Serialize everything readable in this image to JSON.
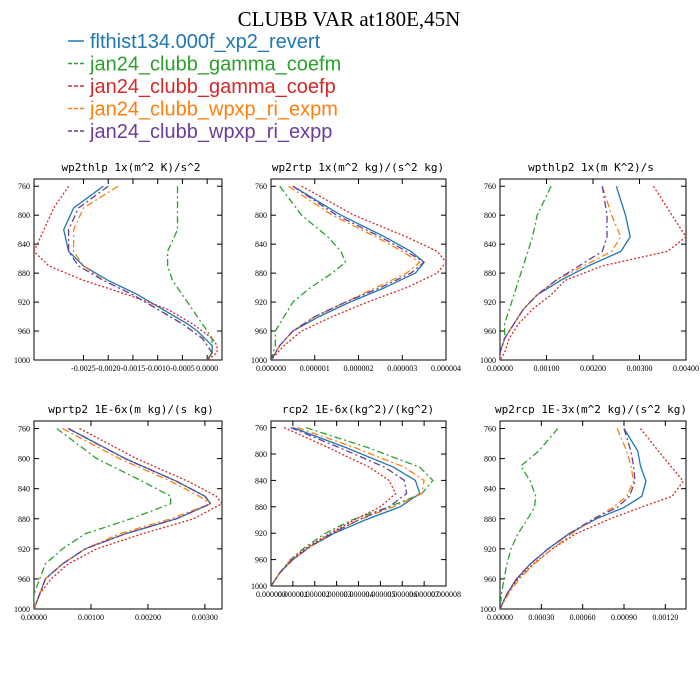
{
  "title": "CLUBB VAR at180E,45N",
  "colors": {
    "flthist134.000f_xp2_revert": "#1f77b4",
    "jan24_clubb_gamma_coefm": "#2ca02c",
    "jan24_clubb_gamma_coefp": "#d62728",
    "jan24_clubb_wpxp_ri_expm": "#ff7f0e",
    "jan24_clubb_wpxp_ri_expp": "#6a3d9a"
  },
  "legend": [
    {
      "name": "flthist134.000f_xp2_revert",
      "color": "#1f77b4",
      "dash": "solid"
    },
    {
      "name": "jan24_clubb_gamma_coefm",
      "color": "#2ca02c",
      "dash": "dashdot"
    },
    {
      "name": "jan24_clubb_gamma_coefp",
      "color": "#d62728",
      "dash": "dot"
    },
    {
      "name": "jan24_clubb_wpxp_ri_expm",
      "color": "#ff7f0e",
      "dash": "dashdot"
    },
    {
      "name": "jan24_clubb_wpxp_ri_expp",
      "color": "#6a3d9a",
      "dash": "dashdot"
    }
  ],
  "chart_data": [
    {
      "type": "line",
      "title": "wp2thlp  1x(m^2 K)/s^2",
      "xlim": [
        -0.0035,
        0.0003
      ],
      "ylim": [
        1000,
        750
      ],
      "xticks": [
        -0.0025,
        -0.002,
        -0.0015,
        -0.001,
        -0.0005,
        0.0
      ],
      "xtick_labels": [
        "-0.0025",
        "-0.0020",
        "-0.0015",
        "-0.0010",
        "-0.0005",
        "0.0000"
      ],
      "yticks": [
        760,
        800,
        840,
        880,
        920,
        960,
        1000
      ],
      "y": [
        760,
        790,
        820,
        850,
        870,
        890,
        910,
        930,
        950,
        960,
        970,
        980,
        990,
        1000
      ],
      "series": [
        {
          "name": "flthist134.000f_xp2_revert",
          "x": [
            -0.0021,
            -0.0027,
            -0.0029,
            -0.0028,
            -0.0025,
            -0.002,
            -0.0014,
            -0.0009,
            -0.0004,
            -0.0002,
            -5e-05,
            0.0001,
            0.0001,
            0.0
          ]
        },
        {
          "name": "jan24_clubb_gamma_coefm",
          "x": [
            -0.0006,
            -0.0006,
            -0.0006,
            -0.0008,
            -0.0008,
            -0.0007,
            -0.0005,
            -0.0003,
            -0.0001,
            0.0,
            0.0001,
            0.0001,
            0.0001,
            0.0
          ]
        },
        {
          "name": "jan24_clubb_gamma_coefp",
          "x": [
            -0.0028,
            -0.0031,
            -0.0033,
            -0.0035,
            -0.0032,
            -0.0025,
            -0.0016,
            -0.0008,
            -0.0003,
            -0.0001,
            0.0001,
            0.0002,
            0.0002,
            0.0
          ]
        },
        {
          "name": "jan24_clubb_wpxp_ri_expm",
          "x": [
            -0.0018,
            -0.0025,
            -0.0027,
            -0.0027,
            -0.0025,
            -0.0021,
            -0.0015,
            -0.001,
            -0.0005,
            -0.0003,
            -0.0001,
            0.0,
            0.0001,
            0.0
          ]
        },
        {
          "name": "jan24_clubb_wpxp_ri_expp",
          "x": [
            -0.002,
            -0.0026,
            -0.0028,
            -0.0028,
            -0.0026,
            -0.0021,
            -0.0015,
            -0.001,
            -0.0005,
            -0.0003,
            -0.0001,
            0.0,
            0.0001,
            0.0
          ]
        }
      ]
    },
    {
      "type": "line",
      "title": "wp2rtp  1x(m^2 kg)/(s^2 kg)",
      "xlim": [
        0.0,
        4e-06
      ],
      "ylim": [
        1000,
        750
      ],
      "xticks": [
        0.0,
        1e-06,
        2e-06,
        3e-06,
        4e-06
      ],
      "xtick_labels": [
        "0.000000",
        "0.000001",
        "0.000002",
        "0.000003",
        "0.000004"
      ],
      "yticks": [
        760,
        800,
        840,
        880,
        920,
        960,
        1000
      ],
      "y": [
        760,
        800,
        830,
        850,
        865,
        880,
        900,
        920,
        940,
        960,
        980,
        1000
      ],
      "series": [
        {
          "name": "flthist134.000f_xp2_revert",
          "x": [
            5e-07,
            1.6e-06,
            2.6e-06,
            3.2e-06,
            3.5e-06,
            3.3e-06,
            2.6e-06,
            1.8e-06,
            1.1e-06,
            5e-07,
            2e-07,
            0.0
          ]
        },
        {
          "name": "jan24_clubb_gamma_coefm",
          "x": [
            2e-07,
            7e-07,
            1.3e-06,
            1.6e-06,
            1.7e-06,
            1.4e-06,
            9e-07,
            5e-07,
            3e-07,
            1e-07,
            1e-07,
            0.0
          ]
        },
        {
          "name": "jan24_clubb_gamma_coefp",
          "x": [
            7e-07,
            1.9e-06,
            3.1e-06,
            3.8e-06,
            4e-06,
            3.8e-06,
            3.1e-06,
            2.2e-06,
            1.4e-06,
            7e-07,
            3e-07,
            0.0
          ]
        },
        {
          "name": "jan24_clubb_wpxp_ri_expm",
          "x": [
            4e-07,
            1.4e-06,
            2.4e-06,
            3e-06,
            3.4e-06,
            3.1e-06,
            2.4e-06,
            1.7e-06,
            1e-06,
            5e-07,
            2e-07,
            0.0
          ]
        },
        {
          "name": "jan24_clubb_wpxp_ri_expp",
          "x": [
            5e-07,
            1.5e-06,
            2.5e-06,
            3.1e-06,
            3.5e-06,
            3.2e-06,
            2.5e-06,
            1.7e-06,
            1e-06,
            5e-07,
            2e-07,
            0.0
          ]
        }
      ]
    },
    {
      "type": "line",
      "title": "wpthlp2  1x(m K^2)/s",
      "xlim": [
        0.0,
        0.004
      ],
      "ylim": [
        1000,
        750
      ],
      "xticks": [
        0.0,
        0.001,
        0.002,
        0.003,
        0.004
      ],
      "xtick_labels": [
        "0.00000",
        "0.00100",
        "0.00200",
        "0.00300",
        "0.00400"
      ],
      "yticks": [
        760,
        800,
        840,
        880,
        920,
        960,
        1000
      ],
      "y": [
        760,
        800,
        830,
        850,
        870,
        890,
        910,
        930,
        950,
        970,
        990,
        1000
      ],
      "series": [
        {
          "name": "flthist134.000f_xp2_revert",
          "x": [
            0.0025,
            0.0027,
            0.0028,
            0.0026,
            0.0019,
            0.0013,
            0.0008,
            0.0005,
            0.0003,
            0.0001,
            0.0,
            0.0
          ]
        },
        {
          "name": "jan24_clubb_gamma_coefm",
          "x": [
            0.0011,
            0.0008,
            0.0007,
            0.0006,
            0.0005,
            0.0004,
            0.0003,
            0.0002,
            0.0001,
            0.0001,
            0.0,
            0.0
          ]
        },
        {
          "name": "jan24_clubb_gamma_coefp",
          "x": [
            0.0033,
            0.0037,
            0.004,
            0.0036,
            0.0022,
            0.0014,
            0.0011,
            0.0007,
            0.0004,
            0.0002,
            0.0001,
            0.0
          ]
        },
        {
          "name": "jan24_clubb_wpxp_ri_expm",
          "x": [
            0.0022,
            0.0024,
            0.0026,
            0.0024,
            0.0018,
            0.0012,
            0.0008,
            0.0005,
            0.0003,
            0.0001,
            0.0,
            0.0
          ]
        },
        {
          "name": "jan24_clubb_wpxp_ri_expp",
          "x": [
            0.0022,
            0.0023,
            0.0023,
            0.0022,
            0.0017,
            0.0012,
            0.0008,
            0.0005,
            0.0003,
            0.0001,
            0.0,
            0.0
          ]
        }
      ]
    },
    {
      "type": "line",
      "title": "wprtp2  1E-6x(m kg)/(s kg)",
      "xlim": [
        0.0,
        0.0033
      ],
      "ylim": [
        1000,
        750
      ],
      "xticks": [
        0.0,
        0.001,
        0.002,
        0.003
      ],
      "xtick_labels": [
        "0.00000",
        "0.00100",
        "0.00200",
        "0.00300"
      ],
      "yticks": [
        760,
        800,
        840,
        880,
        920,
        960,
        1000
      ],
      "y": [
        760,
        800,
        830,
        850,
        860,
        880,
        900,
        920,
        940,
        960,
        980,
        1000
      ],
      "series": [
        {
          "name": "flthist134.000f_xp2_revert",
          "x": [
            0.0006,
            0.0016,
            0.0025,
            0.003,
            0.0031,
            0.0025,
            0.0016,
            0.0009,
            0.0005,
            0.0002,
            0.0001,
            0.0
          ]
        },
        {
          "name": "jan24_clubb_gamma_coefm",
          "x": [
            0.0004,
            0.0011,
            0.0019,
            0.0024,
            0.0024,
            0.0017,
            0.0009,
            0.0005,
            0.0002,
            0.0001,
            0.0,
            0.0
          ]
        },
        {
          "name": "jan24_clubb_gamma_coefp",
          "x": [
            0.0008,
            0.0018,
            0.0027,
            0.0032,
            0.0033,
            0.0028,
            0.0019,
            0.0011,
            0.0006,
            0.0003,
            0.0001,
            0.0
          ]
        },
        {
          "name": "jan24_clubb_wpxp_ri_expm",
          "x": [
            0.0005,
            0.0015,
            0.0024,
            0.0029,
            0.0031,
            0.0024,
            0.0015,
            0.0009,
            0.0005,
            0.0002,
            0.0001,
            0.0
          ]
        },
        {
          "name": "jan24_clubb_wpxp_ri_expp",
          "x": [
            0.0006,
            0.0016,
            0.0025,
            0.003,
            0.0031,
            0.0025,
            0.0016,
            0.0009,
            0.0005,
            0.0002,
            0.0001,
            0.0
          ]
        }
      ]
    },
    {
      "type": "line",
      "title": "rcp2  1E-6x(kg^2)/(kg^2)",
      "xlim": [
        0.0,
        8e-06
      ],
      "ylim": [
        1000,
        750
      ],
      "xticks": [
        0.0,
        1e-06,
        2e-06,
        3e-06,
        4e-06,
        5e-06,
        6e-06,
        7e-06,
        8e-06
      ],
      "xtick_labels": [
        "0.000000",
        "0.000001",
        "0.000002",
        "0.000003",
        "0.000004",
        "0.000005",
        "0.000006",
        "0.000007",
        "0.000008"
      ],
      "yticks": [
        760,
        800,
        840,
        880,
        920,
        960,
        1000
      ],
      "y": [
        760,
        790,
        820,
        840,
        860,
        880,
        900,
        920,
        940,
        960,
        980,
        1000
      ],
      "series": [
        {
          "name": "flthist134.000f_xp2_revert",
          "x": [
            1e-06,
            3.4e-06,
            5.6e-06,
            6.6e-06,
            6.8e-06,
            5.9e-06,
            4.3e-06,
            2.9e-06,
            1.8e-06,
            1e-06,
            4e-07,
            0.0
          ]
        },
        {
          "name": "jan24_clubb_gamma_coefm",
          "x": [
            1.6e-06,
            4.4e-06,
            6.8e-06,
            7.4e-06,
            6.9e-06,
            5.4e-06,
            3.7e-06,
            2.5e-06,
            1.6e-06,
            9e-07,
            4e-07,
            0.0
          ]
        },
        {
          "name": "jan24_clubb_gamma_coefp",
          "x": [
            6e-07,
            2.6e-06,
            4.5e-06,
            5.4e-06,
            5.7e-06,
            5e-06,
            3.8e-06,
            2.7e-06,
            1.7e-06,
            9e-07,
            4e-07,
            0.0
          ]
        },
        {
          "name": "jan24_clubb_wpxp_ri_expm",
          "x": [
            1.2e-06,
            3.8e-06,
            6.1e-06,
            7e-06,
            6.9e-06,
            5.6e-06,
            4e-06,
            2.8e-06,
            1.8e-06,
            1e-06,
            4e-07,
            0.0
          ]
        },
        {
          "name": "jan24_clubb_wpxp_ri_expp",
          "x": [
            9e-07,
            3.1e-06,
            5.2e-06,
            6.1e-06,
            6.2e-06,
            5.4e-06,
            4e-06,
            2.8e-06,
            1.8e-06,
            1e-06,
            4e-07,
            0.0
          ]
        }
      ]
    },
    {
      "type": "line",
      "title": "wp2rcp  1E-3x(m^2 kg)/(s^2 kg)",
      "xlim": [
        0.0,
        0.00135
      ],
      "ylim": [
        1000,
        750
      ],
      "xticks": [
        0.0,
        0.0003,
        0.0006,
        0.0009,
        0.0012
      ],
      "xtick_labels": [
        "0.00000",
        "0.00030",
        "0.00060",
        "0.00090",
        "0.00120"
      ],
      "yticks": [
        760,
        800,
        840,
        880,
        920,
        960,
        1000
      ],
      "y": [
        760,
        790,
        810,
        830,
        850,
        865,
        880,
        900,
        920,
        940,
        960,
        980,
        1000
      ],
      "series": [
        {
          "name": "flthist134.000f_xp2_revert",
          "x": [
            0.0009,
            0.001,
            0.00102,
            0.00106,
            0.00103,
            0.0009,
            0.0007,
            0.0005,
            0.00035,
            0.00022,
            0.00012,
            5e-05,
            0.0
          ]
        },
        {
          "name": "jan24_clubb_gamma_coefm",
          "x": [
            0.00042,
            0.00028,
            0.00015,
            0.00022,
            0.00026,
            0.00025,
            0.0002,
            0.00013,
            8e-05,
            5e-05,
            3e-05,
            1e-05,
            0.0
          ]
        },
        {
          "name": "jan24_clubb_gamma_coefp",
          "x": [
            0.00102,
            0.00115,
            0.00124,
            0.00133,
            0.00125,
            0.00102,
            0.0008,
            0.00055,
            0.00038,
            0.00024,
            0.00013,
            5e-05,
            0.0
          ]
        },
        {
          "name": "jan24_clubb_wpxp_ri_expm",
          "x": [
            0.00085,
            0.00092,
            0.00095,
            0.00097,
            0.00092,
            0.00082,
            0.00068,
            0.00052,
            0.00038,
            0.00025,
            0.00014,
            6e-05,
            0.0
          ]
        },
        {
          "name": "jan24_clubb_wpxp_ri_expp",
          "x": [
            0.0009,
            0.00095,
            0.00097,
            0.00098,
            0.00094,
            0.00085,
            0.00068,
            0.0005,
            0.00035,
            0.00022,
            0.00012,
            5e-05,
            0.0
          ]
        }
      ]
    }
  ]
}
